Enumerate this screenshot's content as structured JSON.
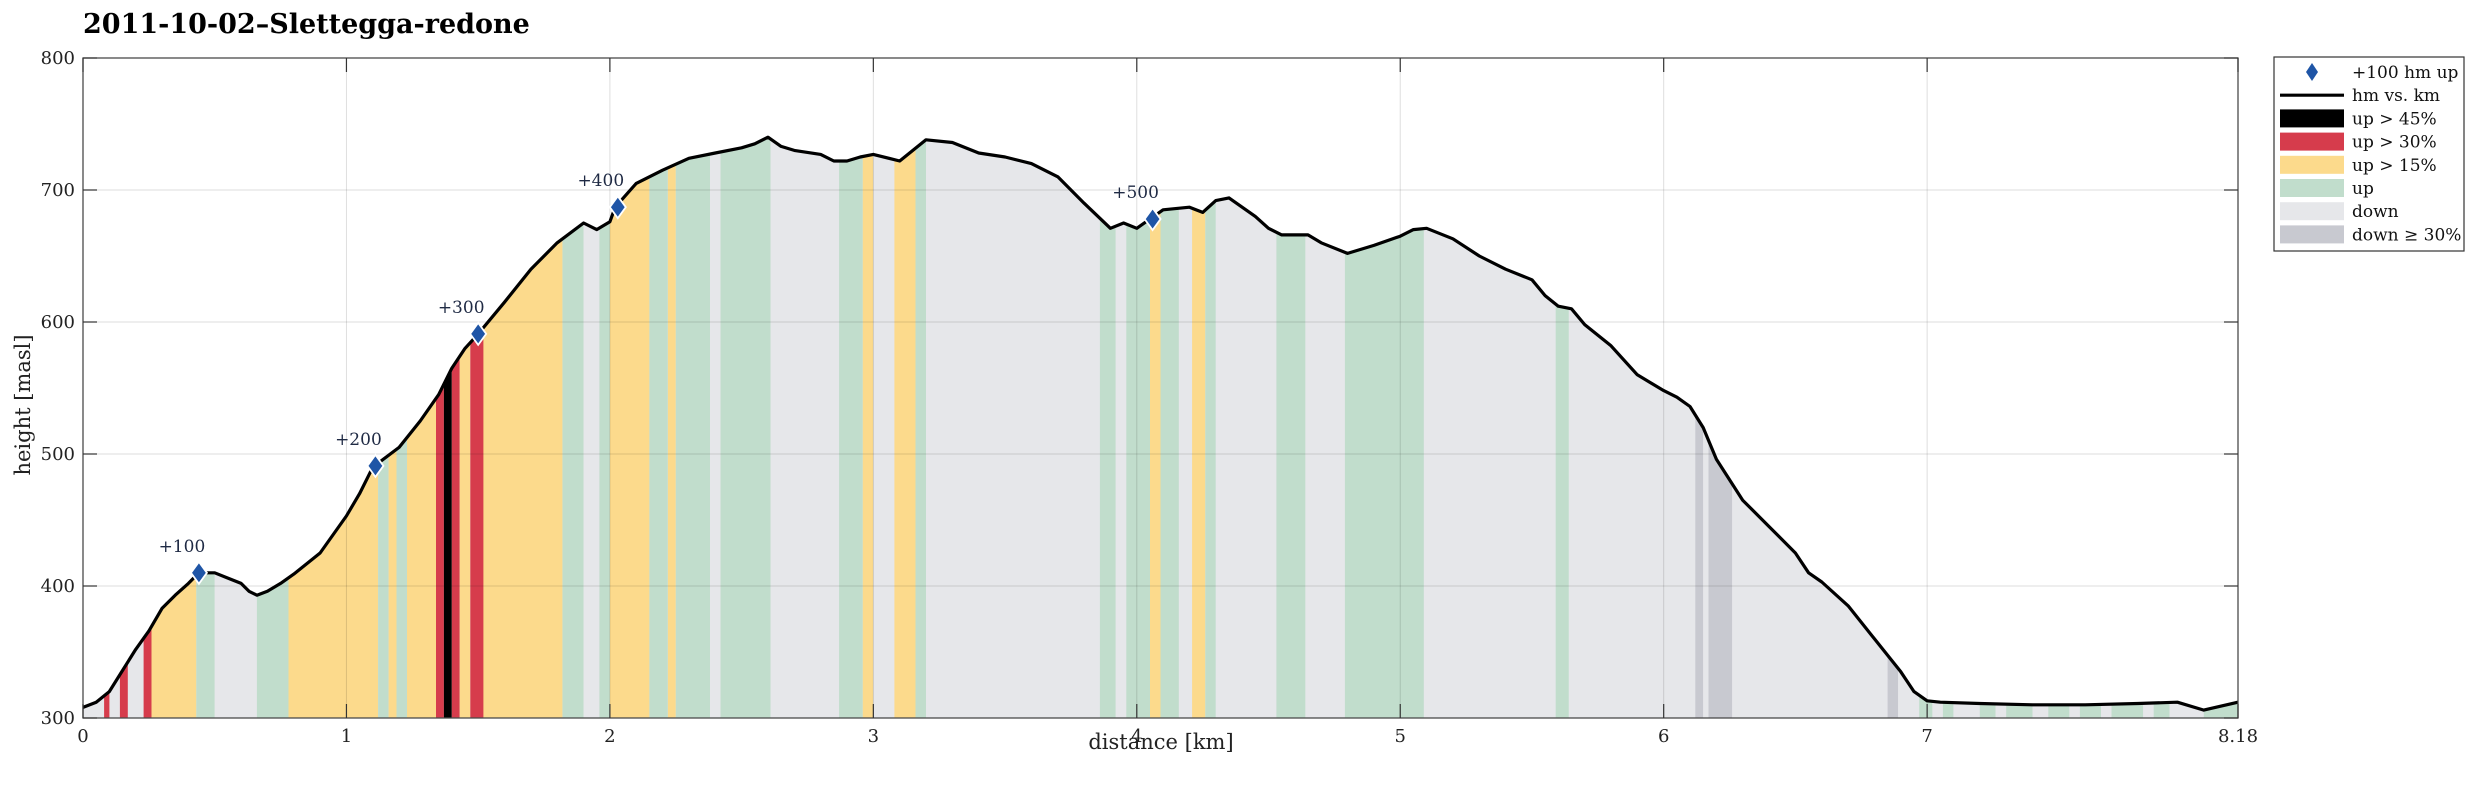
{
  "chart_data": {
    "type": "area",
    "title": "2011-10-02–Slettegga-redone",
    "xlabel": "distance [km]",
    "ylabel": "height [masl]",
    "xlim": [
      0,
      8.18
    ],
    "ylim": [
      300,
      800
    ],
    "x_ticks": [
      0,
      1,
      2,
      3,
      4,
      5,
      6,
      7,
      8.18
    ],
    "x_tick_labels": [
      "0",
      "1",
      "2",
      "3",
      "4",
      "5",
      "6",
      "7",
      "8.18"
    ],
    "y_ticks": [
      300,
      400,
      500,
      600,
      700,
      800
    ],
    "grid": true,
    "legend_position": "outside-top-right",
    "colors": {
      "line": "#000000",
      "marker": "#1f55a6",
      "up45": "#000000",
      "up30": "#d63c4c",
      "up15": "#fcda8c",
      "up": "#c1ddcc",
      "down": "#e6e7ea",
      "down30": "#c8c9d0"
    },
    "legend": [
      {
        "key": "marker",
        "label": "+100 hm up"
      },
      {
        "key": "line",
        "label": "hm vs. km"
      },
      {
        "key": "up45",
        "label": "up > 45%"
      },
      {
        "key": "up30",
        "label": "up > 30%"
      },
      {
        "key": "up15",
        "label": "up > 15%"
      },
      {
        "key": "up",
        "label": "up"
      },
      {
        "key": "down",
        "label": "down"
      },
      {
        "key": "down30",
        "label": "down ≥ 30%"
      }
    ],
    "profile": [
      [
        0,
        308
      ],
      [
        0.05,
        312
      ],
      [
        0.1,
        320
      ],
      [
        0.15,
        336
      ],
      [
        0.2,
        352
      ],
      [
        0.25,
        366
      ],
      [
        0.3,
        383
      ],
      [
        0.35,
        393
      ],
      [
        0.4,
        402
      ],
      [
        0.44,
        410
      ],
      [
        0.5,
        410
      ],
      [
        0.55,
        406
      ],
      [
        0.6,
        402
      ],
      [
        0.63,
        396
      ],
      [
        0.66,
        393
      ],
      [
        0.7,
        396
      ],
      [
        0.75,
        402
      ],
      [
        0.8,
        409
      ],
      [
        0.9,
        425
      ],
      [
        1.0,
        453
      ],
      [
        1.05,
        470
      ],
      [
        1.1,
        490
      ],
      [
        1.2,
        505
      ],
      [
        1.28,
        525
      ],
      [
        1.35,
        545
      ],
      [
        1.4,
        565
      ],
      [
        1.45,
        580
      ],
      [
        1.5,
        591
      ],
      [
        1.6,
        615
      ],
      [
        1.7,
        640
      ],
      [
        1.8,
        660
      ],
      [
        1.9,
        675
      ],
      [
        1.95,
        670
      ],
      [
        2.0,
        676
      ],
      [
        2.02,
        687
      ],
      [
        2.1,
        705
      ],
      [
        2.2,
        715
      ],
      [
        2.3,
        724
      ],
      [
        2.4,
        728
      ],
      [
        2.5,
        732
      ],
      [
        2.55,
        735
      ],
      [
        2.6,
        740
      ],
      [
        2.65,
        733
      ],
      [
        2.7,
        730
      ],
      [
        2.8,
        727
      ],
      [
        2.85,
        722
      ],
      [
        2.9,
        722
      ],
      [
        2.95,
        725
      ],
      [
        3.0,
        727
      ],
      [
        3.1,
        722
      ],
      [
        3.2,
        738
      ],
      [
        3.3,
        736
      ],
      [
        3.4,
        728
      ],
      [
        3.5,
        725
      ],
      [
        3.6,
        720
      ],
      [
        3.7,
        710
      ],
      [
        3.8,
        690
      ],
      [
        3.9,
        671
      ],
      [
        3.95,
        675
      ],
      [
        4.0,
        671
      ],
      [
        4.05,
        678
      ],
      [
        4.1,
        685
      ],
      [
        4.2,
        687
      ],
      [
        4.25,
        683
      ],
      [
        4.3,
        692
      ],
      [
        4.35,
        694
      ],
      [
        4.45,
        680
      ],
      [
        4.5,
        671
      ],
      [
        4.55,
        666
      ],
      [
        4.65,
        666
      ],
      [
        4.7,
        660
      ],
      [
        4.8,
        652
      ],
      [
        4.9,
        658
      ],
      [
        5.0,
        665
      ],
      [
        5.05,
        670
      ],
      [
        5.1,
        671
      ],
      [
        5.2,
        663
      ],
      [
        5.3,
        650
      ],
      [
        5.4,
        640
      ],
      [
        5.5,
        632
      ],
      [
        5.55,
        620
      ],
      [
        5.6,
        612
      ],
      [
        5.65,
        610
      ],
      [
        5.7,
        598
      ],
      [
        5.8,
        582
      ],
      [
        5.9,
        560
      ],
      [
        6.0,
        548
      ],
      [
        6.05,
        543
      ],
      [
        6.1,
        536
      ],
      [
        6.15,
        520
      ],
      [
        6.2,
        496
      ],
      [
        6.3,
        465
      ],
      [
        6.4,
        445
      ],
      [
        6.5,
        425
      ],
      [
        6.55,
        410
      ],
      [
        6.6,
        403
      ],
      [
        6.7,
        385
      ],
      [
        6.8,
        360
      ],
      [
        6.9,
        335
      ],
      [
        6.95,
        320
      ],
      [
        7.0,
        313
      ],
      [
        7.05,
        312
      ],
      [
        7.2,
        311
      ],
      [
        7.4,
        310
      ],
      [
        7.6,
        310
      ],
      [
        7.8,
        311
      ],
      [
        7.95,
        312
      ],
      [
        8.05,
        306
      ],
      [
        8.18,
        312
      ]
    ],
    "bands": [
      {
        "x0": 0.08,
        "x1": 0.1,
        "cat": "up30"
      },
      {
        "x0": 0.14,
        "x1": 0.17,
        "cat": "up30"
      },
      {
        "x0": 0.23,
        "x1": 0.26,
        "cat": "up30"
      },
      {
        "x0": 0.26,
        "x1": 0.43,
        "cat": "up15"
      },
      {
        "x0": 0.43,
        "x1": 0.5,
        "cat": "up"
      },
      {
        "x0": 0.5,
        "x1": 0.66,
        "cat": "down"
      },
      {
        "x0": 0.66,
        "x1": 0.78,
        "cat": "up"
      },
      {
        "x0": 0.78,
        "x1": 1.12,
        "cat": "up15"
      },
      {
        "x0": 1.12,
        "x1": 1.16,
        "cat": "up"
      },
      {
        "x0": 1.16,
        "x1": 1.19,
        "cat": "up15"
      },
      {
        "x0": 1.19,
        "x1": 1.23,
        "cat": "up"
      },
      {
        "x0": 1.23,
        "x1": 1.34,
        "cat": "up15"
      },
      {
        "x0": 1.34,
        "x1": 1.37,
        "cat": "up30"
      },
      {
        "x0": 1.37,
        "x1": 1.4,
        "cat": "up45"
      },
      {
        "x0": 1.4,
        "x1": 1.43,
        "cat": "up30"
      },
      {
        "x0": 1.43,
        "x1": 1.47,
        "cat": "up15"
      },
      {
        "x0": 1.47,
        "x1": 1.52,
        "cat": "up30"
      },
      {
        "x0": 1.52,
        "x1": 1.82,
        "cat": "up15"
      },
      {
        "x0": 1.82,
        "x1": 1.9,
        "cat": "up"
      },
      {
        "x0": 1.9,
        "x1": 1.96,
        "cat": "down"
      },
      {
        "x0": 1.96,
        "x1": 2.0,
        "cat": "up"
      },
      {
        "x0": 2.0,
        "x1": 2.15,
        "cat": "up15"
      },
      {
        "x0": 2.15,
        "x1": 2.22,
        "cat": "up"
      },
      {
        "x0": 2.22,
        "x1": 2.25,
        "cat": "up15"
      },
      {
        "x0": 2.25,
        "x1": 2.38,
        "cat": "up"
      },
      {
        "x0": 2.38,
        "x1": 2.42,
        "cat": "down"
      },
      {
        "x0": 2.42,
        "x1": 2.61,
        "cat": "up"
      },
      {
        "x0": 2.61,
        "x1": 2.87,
        "cat": "down"
      },
      {
        "x0": 2.87,
        "x1": 2.96,
        "cat": "up"
      },
      {
        "x0": 2.96,
        "x1": 3.0,
        "cat": "up15"
      },
      {
        "x0": 3.0,
        "x1": 3.08,
        "cat": "down"
      },
      {
        "x0": 3.08,
        "x1": 3.16,
        "cat": "up15"
      },
      {
        "x0": 3.16,
        "x1": 3.2,
        "cat": "up"
      },
      {
        "x0": 3.2,
        "x1": 3.86,
        "cat": "down"
      },
      {
        "x0": 3.86,
        "x1": 3.92,
        "cat": "up"
      },
      {
        "x0": 3.92,
        "x1": 3.96,
        "cat": "down"
      },
      {
        "x0": 3.96,
        "x1": 4.05,
        "cat": "up"
      },
      {
        "x0": 4.05,
        "x1": 4.09,
        "cat": "up15"
      },
      {
        "x0": 4.09,
        "x1": 4.16,
        "cat": "up"
      },
      {
        "x0": 4.16,
        "x1": 4.21,
        "cat": "down"
      },
      {
        "x0": 4.21,
        "x1": 4.26,
        "cat": "up15"
      },
      {
        "x0": 4.26,
        "x1": 4.3,
        "cat": "up"
      },
      {
        "x0": 4.3,
        "x1": 4.53,
        "cat": "down"
      },
      {
        "x0": 4.53,
        "x1": 4.64,
        "cat": "up"
      },
      {
        "x0": 4.64,
        "x1": 4.79,
        "cat": "down"
      },
      {
        "x0": 4.79,
        "x1": 5.09,
        "cat": "up"
      },
      {
        "x0": 5.09,
        "x1": 5.59,
        "cat": "down"
      },
      {
        "x0": 5.59,
        "x1": 5.64,
        "cat": "up"
      },
      {
        "x0": 5.64,
        "x1": 6.12,
        "cat": "down"
      },
      {
        "x0": 6.12,
        "x1": 6.15,
        "cat": "down30"
      },
      {
        "x0": 6.15,
        "x1": 6.17,
        "cat": "down"
      },
      {
        "x0": 6.17,
        "x1": 6.26,
        "cat": "down30"
      },
      {
        "x0": 6.26,
        "x1": 6.85,
        "cat": "down"
      },
      {
        "x0": 6.85,
        "x1": 6.89,
        "cat": "down30"
      },
      {
        "x0": 6.89,
        "x1": 6.97,
        "cat": "down"
      },
      {
        "x0": 6.97,
        "x1": 7.02,
        "cat": "up"
      },
      {
        "x0": 7.02,
        "x1": 7.06,
        "cat": "down"
      },
      {
        "x0": 7.06,
        "x1": 7.1,
        "cat": "up"
      },
      {
        "x0": 7.1,
        "x1": 7.2,
        "cat": "down"
      },
      {
        "x0": 7.2,
        "x1": 7.26,
        "cat": "up"
      },
      {
        "x0": 7.26,
        "x1": 7.3,
        "cat": "down"
      },
      {
        "x0": 7.3,
        "x1": 7.4,
        "cat": "up"
      },
      {
        "x0": 7.4,
        "x1": 7.46,
        "cat": "down"
      },
      {
        "x0": 7.46,
        "x1": 7.54,
        "cat": "up"
      },
      {
        "x0": 7.54,
        "x1": 7.58,
        "cat": "down"
      },
      {
        "x0": 7.58,
        "x1": 7.66,
        "cat": "up"
      },
      {
        "x0": 7.66,
        "x1": 7.7,
        "cat": "down"
      },
      {
        "x0": 7.7,
        "x1": 7.82,
        "cat": "up"
      },
      {
        "x0": 7.82,
        "x1": 7.86,
        "cat": "down"
      },
      {
        "x0": 7.86,
        "x1": 7.92,
        "cat": "up"
      },
      {
        "x0": 7.92,
        "x1": 8.05,
        "cat": "down"
      },
      {
        "x0": 8.05,
        "x1": 8.18,
        "cat": "up"
      }
    ],
    "markers": [
      {
        "label": "+100",
        "x": 0.44,
        "y": 410
      },
      {
        "label": "+200",
        "x": 1.11,
        "y": 491
      },
      {
        "label": "+300",
        "x": 1.5,
        "y": 591
      },
      {
        "label": "+400",
        "x": 2.03,
        "y": 687
      },
      {
        "label": "+500",
        "x": 4.06,
        "y": 678
      }
    ]
  }
}
